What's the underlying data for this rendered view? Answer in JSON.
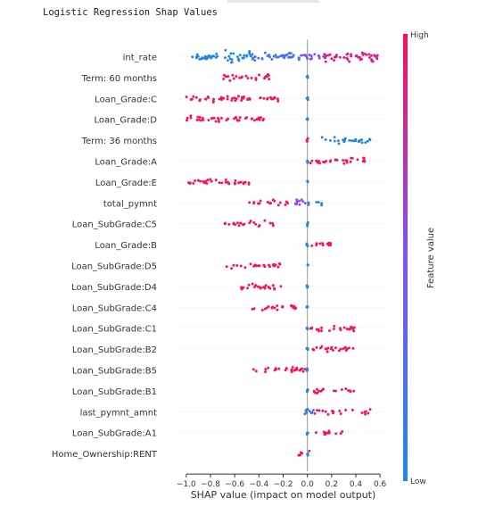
{
  "page": {
    "title": "Logistic Regression Shap Values"
  },
  "chart_data": {
    "type": "scatter",
    "subtype": "shap-beeswarm",
    "title": "Logistic Regression Shap Values",
    "xlabel": "SHAP value (impact on model output)",
    "ylabel": "",
    "xlim": [
      -1.08,
      0.68
    ],
    "xticks": [
      -1.0,
      -0.8,
      -0.6,
      -0.4,
      -0.2,
      0.0,
      0.2,
      0.4,
      0.6
    ],
    "xtick_labels": [
      "−1.0",
      "−0.8",
      "−0.6",
      "−0.4",
      "−0.2",
      "0.0",
      "0.2",
      "0.4",
      "0.6"
    ],
    "colorbar": {
      "label": "Feature value",
      "high_label": "High",
      "low_label": "Low",
      "low_color": "#1e88e5",
      "mid_color": "#7c52ff",
      "high_color": "#ff0d57"
    },
    "grid": false,
    "features": [
      {
        "name": "int_rate",
        "clusters": [
          {
            "min": -0.98,
            "max": -0.7,
            "color": 0.0,
            "density": 2.0,
            "spread": 0.55
          },
          {
            "min": -0.7,
            "max": -0.45,
            "color": 0.03,
            "density": 2.4,
            "spread": 1.0
          },
          {
            "min": -0.45,
            "max": -0.06,
            "color": 0.2,
            "density": 2.0,
            "spread": 0.6
          },
          {
            "min": -0.06,
            "max": 0.14,
            "color": 0.5,
            "density": 1.6,
            "spread": 0.55
          },
          {
            "min": 0.14,
            "max": 0.58,
            "color": 0.85,
            "density": 2.4,
            "spread": 0.9
          }
        ]
      },
      {
        "name": "Term: 60 months",
        "clusters": [
          {
            "min": -0.7,
            "max": -0.29,
            "color": 1.0,
            "density": 1.3,
            "spread": 0.5
          },
          {
            "min": -0.005,
            "max": 0.005,
            "color": 0.0,
            "density": 1.0,
            "spread": 0.3
          }
        ]
      },
      {
        "name": "Loan_Grade:C",
        "clusters": [
          {
            "min": -1.0,
            "max": -0.22,
            "color": 1.0,
            "density": 1.4,
            "spread": 0.5
          },
          {
            "min": -0.005,
            "max": 0.005,
            "color": 0.0,
            "density": 1.0,
            "spread": 0.3
          }
        ]
      },
      {
        "name": "Loan_Grade:D",
        "clusters": [
          {
            "min": -1.0,
            "max": -0.35,
            "color": 1.0,
            "density": 1.4,
            "spread": 0.5
          },
          {
            "min": -0.005,
            "max": 0.005,
            "color": 0.0,
            "density": 1.0,
            "spread": 0.3
          }
        ]
      },
      {
        "name": "Term: 36 months",
        "clusters": [
          {
            "min": 0.12,
            "max": 0.52,
            "color": 0.0,
            "density": 1.5,
            "spread": 0.5
          },
          {
            "min": -0.005,
            "max": 0.005,
            "color": 1.0,
            "density": 1.0,
            "spread": 0.3
          }
        ]
      },
      {
        "name": "Loan_Grade:A",
        "clusters": [
          {
            "min": 0.02,
            "max": 0.49,
            "color": 1.0,
            "density": 1.4,
            "spread": 0.5
          },
          {
            "min": -0.005,
            "max": 0.005,
            "color": 0.0,
            "density": 1.0,
            "spread": 0.3
          }
        ]
      },
      {
        "name": "Loan_Grade:E",
        "clusters": [
          {
            "min": -0.99,
            "max": -0.45,
            "color": 1.0,
            "density": 1.4,
            "spread": 0.5
          },
          {
            "min": -0.005,
            "max": 0.005,
            "color": 0.0,
            "density": 1.0,
            "spread": 0.3
          }
        ]
      },
      {
        "name": "total_pymnt",
        "clusters": [
          {
            "min": -0.62,
            "max": -0.08,
            "color": 1.0,
            "density": 0.7,
            "spread": 0.45
          },
          {
            "min": -0.1,
            "max": 0.0,
            "color": 0.55,
            "density": 2.0,
            "spread": 0.6
          },
          {
            "min": 0.0,
            "max": 0.12,
            "color": 0.05,
            "density": 1.2,
            "spread": 0.45
          }
        ]
      },
      {
        "name": "Loan_SubGrade:C5",
        "clusters": [
          {
            "min": -0.68,
            "max": -0.28,
            "color": 1.0,
            "density": 1.2,
            "spread": 0.45
          },
          {
            "min": -0.005,
            "max": 0.005,
            "color": 0.0,
            "density": 1.0,
            "spread": 0.3
          }
        ]
      },
      {
        "name": "Loan_Grade:B",
        "clusters": [
          {
            "min": 0.0,
            "max": 0.2,
            "color": 1.0,
            "density": 1.4,
            "spread": 0.5
          },
          {
            "min": -0.005,
            "max": 0.005,
            "color": 0.0,
            "density": 1.0,
            "spread": 0.3
          }
        ]
      },
      {
        "name": "Loan_SubGrade:D5",
        "clusters": [
          {
            "min": -0.67,
            "max": -0.22,
            "color": 1.0,
            "density": 1.3,
            "spread": 0.45
          },
          {
            "min": -0.005,
            "max": 0.005,
            "color": 0.0,
            "density": 1.0,
            "spread": 0.3
          }
        ]
      },
      {
        "name": "Loan_SubGrade:D4",
        "clusters": [
          {
            "min": -0.58,
            "max": -0.19,
            "color": 1.0,
            "density": 1.3,
            "spread": 0.45
          },
          {
            "min": -0.005,
            "max": 0.005,
            "color": 0.0,
            "density": 1.0,
            "spread": 0.3
          }
        ]
      },
      {
        "name": "Loan_SubGrade:C4",
        "clusters": [
          {
            "min": -0.46,
            "max": -0.08,
            "color": 1.0,
            "density": 1.3,
            "spread": 0.45
          },
          {
            "min": -0.005,
            "max": 0.005,
            "color": 0.0,
            "density": 1.0,
            "spread": 0.3
          }
        ]
      },
      {
        "name": "Loan_SubGrade:C1",
        "clusters": [
          {
            "min": 0.02,
            "max": 0.4,
            "color": 1.0,
            "density": 1.3,
            "spread": 0.45
          },
          {
            "min": -0.005,
            "max": 0.005,
            "color": 0.0,
            "density": 1.0,
            "spread": 0.3
          }
        ]
      },
      {
        "name": "Loan_SubGrade:B2",
        "clusters": [
          {
            "min": 0.01,
            "max": 0.4,
            "color": 1.0,
            "density": 1.3,
            "spread": 0.45
          },
          {
            "min": -0.005,
            "max": 0.005,
            "color": 0.0,
            "density": 1.0,
            "spread": 0.3
          }
        ]
      },
      {
        "name": "Loan_SubGrade:B5",
        "clusters": [
          {
            "min": -0.47,
            "max": -0.02,
            "color": 1.0,
            "density": 1.3,
            "spread": 0.45
          },
          {
            "min": -0.005,
            "max": 0.005,
            "color": 0.0,
            "density": 1.0,
            "spread": 0.3
          }
        ]
      },
      {
        "name": "Loan_SubGrade:B1",
        "clusters": [
          {
            "min": -0.01,
            "max": 0.4,
            "color": 1.0,
            "density": 0.9,
            "spread": 0.45
          },
          {
            "min": -0.005,
            "max": 0.005,
            "color": 0.0,
            "density": 1.0,
            "spread": 0.3
          }
        ]
      },
      {
        "name": "last_pymnt_amnt",
        "clusters": [
          {
            "min": -0.04,
            "max": 0.06,
            "color": 0.15,
            "density": 2.0,
            "spread": 0.5
          },
          {
            "min": 0.06,
            "max": 0.52,
            "color": 1.0,
            "density": 0.9,
            "spread": 0.45
          }
        ]
      },
      {
        "name": "Loan_SubGrade:A1",
        "clusters": [
          {
            "min": 0.06,
            "max": 0.33,
            "color": 1.0,
            "density": 0.9,
            "spread": 0.4
          },
          {
            "min": -0.005,
            "max": 0.005,
            "color": 0.0,
            "density": 1.0,
            "spread": 0.3
          }
        ]
      },
      {
        "name": "Home_Ownership:RENT",
        "clusters": [
          {
            "min": -0.08,
            "max": 0.05,
            "color": 1.0,
            "density": 0.9,
            "spread": 0.4
          },
          {
            "min": -0.005,
            "max": 0.005,
            "color": 0.0,
            "density": 1.0,
            "spread": 0.4
          }
        ]
      }
    ]
  }
}
